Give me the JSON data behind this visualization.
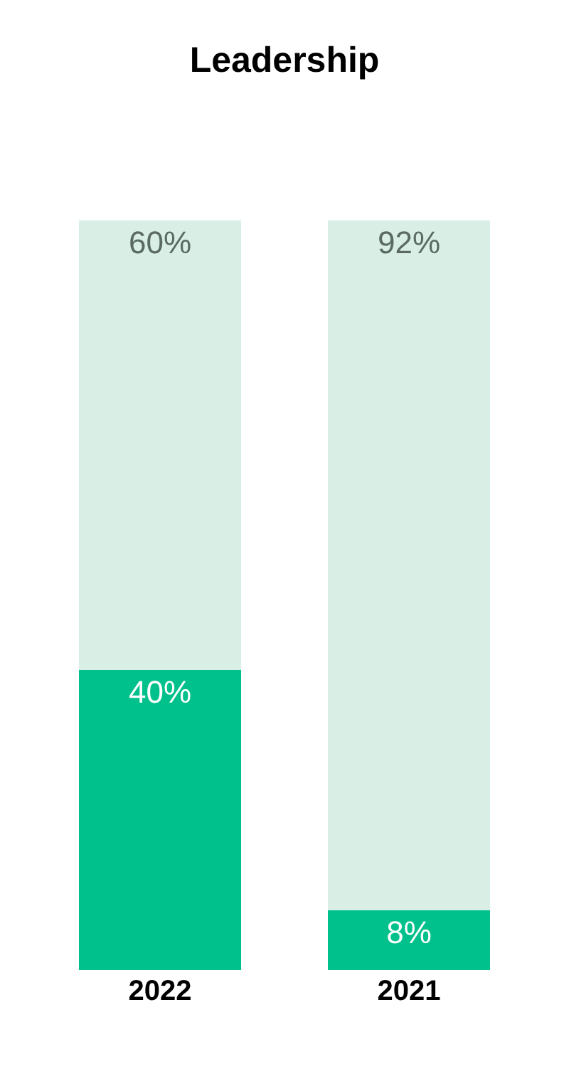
{
  "chart_data": {
    "type": "bar",
    "title": "Leadership",
    "categories": [
      "2022",
      "2021"
    ],
    "stacked": true,
    "tick_labels": "x",
    "series": [
      {
        "color": "#00c08b",
        "values": [
          40,
          8
        ],
        "value_labels": [
          "40%",
          "8%"
        ]
      },
      {
        "color": "#d9efe6",
        "values": [
          60,
          92
        ],
        "value_labels": [
          "60%",
          "92%"
        ]
      }
    ]
  }
}
